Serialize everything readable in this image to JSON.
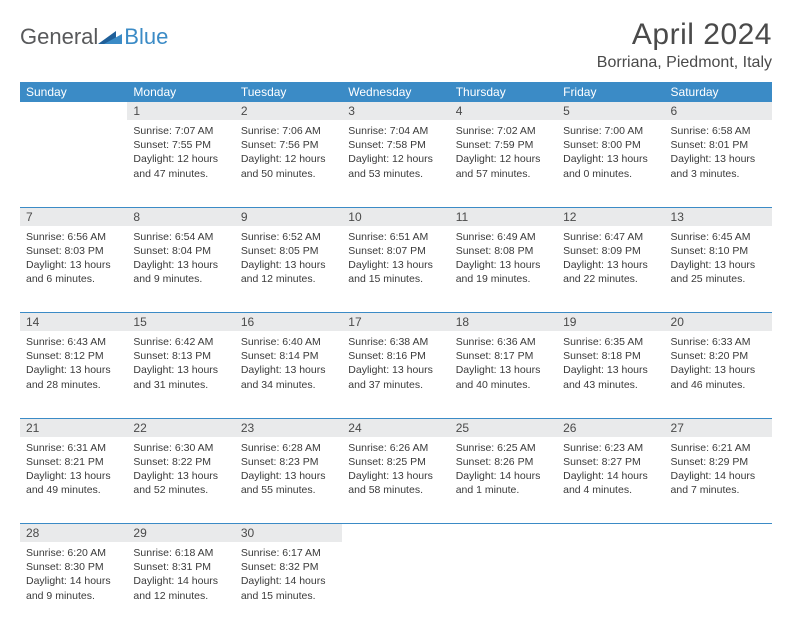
{
  "logo": {
    "part1": "General",
    "part2": "Blue"
  },
  "title": "April 2024",
  "location": "Borriana, Piedmont, Italy",
  "colors": {
    "header_bg": "#3b8bc6",
    "header_text": "#ffffff",
    "daynum_bg": "#e9eaeb",
    "text": "#4a4a4a",
    "body_text": "#3a3a3a",
    "logo_gray": "#58595b",
    "logo_blue": "#3b8bc6"
  },
  "day_headers": [
    "Sunday",
    "Monday",
    "Tuesday",
    "Wednesday",
    "Thursday",
    "Friday",
    "Saturday"
  ],
  "weeks": [
    [
      {
        "n": "",
        "sr": "",
        "ss": "",
        "dl": ""
      },
      {
        "n": "1",
        "sr": "7:07 AM",
        "ss": "7:55 PM",
        "dl": "12 hours and 47 minutes."
      },
      {
        "n": "2",
        "sr": "7:06 AM",
        "ss": "7:56 PM",
        "dl": "12 hours and 50 minutes."
      },
      {
        "n": "3",
        "sr": "7:04 AM",
        "ss": "7:58 PM",
        "dl": "12 hours and 53 minutes."
      },
      {
        "n": "4",
        "sr": "7:02 AM",
        "ss": "7:59 PM",
        "dl": "12 hours and 57 minutes."
      },
      {
        "n": "5",
        "sr": "7:00 AM",
        "ss": "8:00 PM",
        "dl": "13 hours and 0 minutes."
      },
      {
        "n": "6",
        "sr": "6:58 AM",
        "ss": "8:01 PM",
        "dl": "13 hours and 3 minutes."
      }
    ],
    [
      {
        "n": "7",
        "sr": "6:56 AM",
        "ss": "8:03 PM",
        "dl": "13 hours and 6 minutes."
      },
      {
        "n": "8",
        "sr": "6:54 AM",
        "ss": "8:04 PM",
        "dl": "13 hours and 9 minutes."
      },
      {
        "n": "9",
        "sr": "6:52 AM",
        "ss": "8:05 PM",
        "dl": "13 hours and 12 minutes."
      },
      {
        "n": "10",
        "sr": "6:51 AM",
        "ss": "8:07 PM",
        "dl": "13 hours and 15 minutes."
      },
      {
        "n": "11",
        "sr": "6:49 AM",
        "ss": "8:08 PM",
        "dl": "13 hours and 19 minutes."
      },
      {
        "n": "12",
        "sr": "6:47 AM",
        "ss": "8:09 PM",
        "dl": "13 hours and 22 minutes."
      },
      {
        "n": "13",
        "sr": "6:45 AM",
        "ss": "8:10 PM",
        "dl": "13 hours and 25 minutes."
      }
    ],
    [
      {
        "n": "14",
        "sr": "6:43 AM",
        "ss": "8:12 PM",
        "dl": "13 hours and 28 minutes."
      },
      {
        "n": "15",
        "sr": "6:42 AM",
        "ss": "8:13 PM",
        "dl": "13 hours and 31 minutes."
      },
      {
        "n": "16",
        "sr": "6:40 AM",
        "ss": "8:14 PM",
        "dl": "13 hours and 34 minutes."
      },
      {
        "n": "17",
        "sr": "6:38 AM",
        "ss": "8:16 PM",
        "dl": "13 hours and 37 minutes."
      },
      {
        "n": "18",
        "sr": "6:36 AM",
        "ss": "8:17 PM",
        "dl": "13 hours and 40 minutes."
      },
      {
        "n": "19",
        "sr": "6:35 AM",
        "ss": "8:18 PM",
        "dl": "13 hours and 43 minutes."
      },
      {
        "n": "20",
        "sr": "6:33 AM",
        "ss": "8:20 PM",
        "dl": "13 hours and 46 minutes."
      }
    ],
    [
      {
        "n": "21",
        "sr": "6:31 AM",
        "ss": "8:21 PM",
        "dl": "13 hours and 49 minutes."
      },
      {
        "n": "22",
        "sr": "6:30 AM",
        "ss": "8:22 PM",
        "dl": "13 hours and 52 minutes."
      },
      {
        "n": "23",
        "sr": "6:28 AM",
        "ss": "8:23 PM",
        "dl": "13 hours and 55 minutes."
      },
      {
        "n": "24",
        "sr": "6:26 AM",
        "ss": "8:25 PM",
        "dl": "13 hours and 58 minutes."
      },
      {
        "n": "25",
        "sr": "6:25 AM",
        "ss": "8:26 PM",
        "dl": "14 hours and 1 minute."
      },
      {
        "n": "26",
        "sr": "6:23 AM",
        "ss": "8:27 PM",
        "dl": "14 hours and 4 minutes."
      },
      {
        "n": "27",
        "sr": "6:21 AM",
        "ss": "8:29 PM",
        "dl": "14 hours and 7 minutes."
      }
    ],
    [
      {
        "n": "28",
        "sr": "6:20 AM",
        "ss": "8:30 PM",
        "dl": "14 hours and 9 minutes."
      },
      {
        "n": "29",
        "sr": "6:18 AM",
        "ss": "8:31 PM",
        "dl": "14 hours and 12 minutes."
      },
      {
        "n": "30",
        "sr": "6:17 AM",
        "ss": "8:32 PM",
        "dl": "14 hours and 15 minutes."
      },
      {
        "n": "",
        "sr": "",
        "ss": "",
        "dl": ""
      },
      {
        "n": "",
        "sr": "",
        "ss": "",
        "dl": ""
      },
      {
        "n": "",
        "sr": "",
        "ss": "",
        "dl": ""
      },
      {
        "n": "",
        "sr": "",
        "ss": "",
        "dl": ""
      }
    ]
  ],
  "labels": {
    "sunrise": "Sunrise: ",
    "sunset": "Sunset: ",
    "daylight": "Daylight: "
  }
}
